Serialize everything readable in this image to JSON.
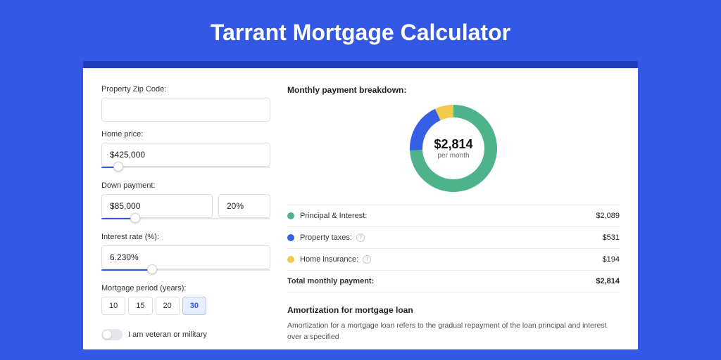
{
  "page": {
    "title": "Tarrant Mortgage Calculator",
    "bg_color": "#3358e6",
    "dark_bar_color": "#1f3db8",
    "card_bg": "#ffffff"
  },
  "form": {
    "zip": {
      "label": "Property Zip Code:",
      "value": ""
    },
    "home_price": {
      "label": "Home price:",
      "value": "$425,000",
      "slider_pct": 10
    },
    "down": {
      "label": "Down payment:",
      "value": "$85,000",
      "pct": "20%",
      "slider_pct": 20
    },
    "rate": {
      "label": "Interest rate (%):",
      "value": "6.230%",
      "slider_pct": 30
    },
    "period": {
      "label": "Mortgage period (years):",
      "options": [
        "10",
        "15",
        "20",
        "30"
      ],
      "selected": "30"
    },
    "veteran": {
      "label": "I am veteran or military",
      "on": false
    }
  },
  "breakdown": {
    "title": "Monthly payment breakdown:",
    "center_amount": "$2,814",
    "center_sub": "per month",
    "donut": {
      "size": 124,
      "thickness": 18,
      "slices": [
        {
          "key": "principal",
          "color": "#4eb28b",
          "value": 2089
        },
        {
          "key": "taxes",
          "color": "#355fe5",
          "value": 531
        },
        {
          "key": "insurance",
          "color": "#f1c94b",
          "value": 194
        }
      ]
    },
    "rows": [
      {
        "label": "Principal & Interest:",
        "value": "$2,089",
        "swatch": "#4eb28b",
        "help": false
      },
      {
        "label": "Property taxes:",
        "value": "$531",
        "swatch": "#355fe5",
        "help": true
      },
      {
        "label": "Home insurance:",
        "value": "$194",
        "swatch": "#f1c94b",
        "help": true
      }
    ],
    "total": {
      "label": "Total monthly payment:",
      "value": "$2,814"
    }
  },
  "amortization": {
    "title": "Amortization for mortgage loan",
    "text": "Amortization for a mortgage loan refers to the gradual repayment of the loan principal and interest over a specified"
  },
  "typography": {
    "title_fontsize": 32,
    "label_fontsize": 11,
    "input_fontsize": 12,
    "section_title_fontsize": 12,
    "donut_amount_fontsize": 18
  }
}
